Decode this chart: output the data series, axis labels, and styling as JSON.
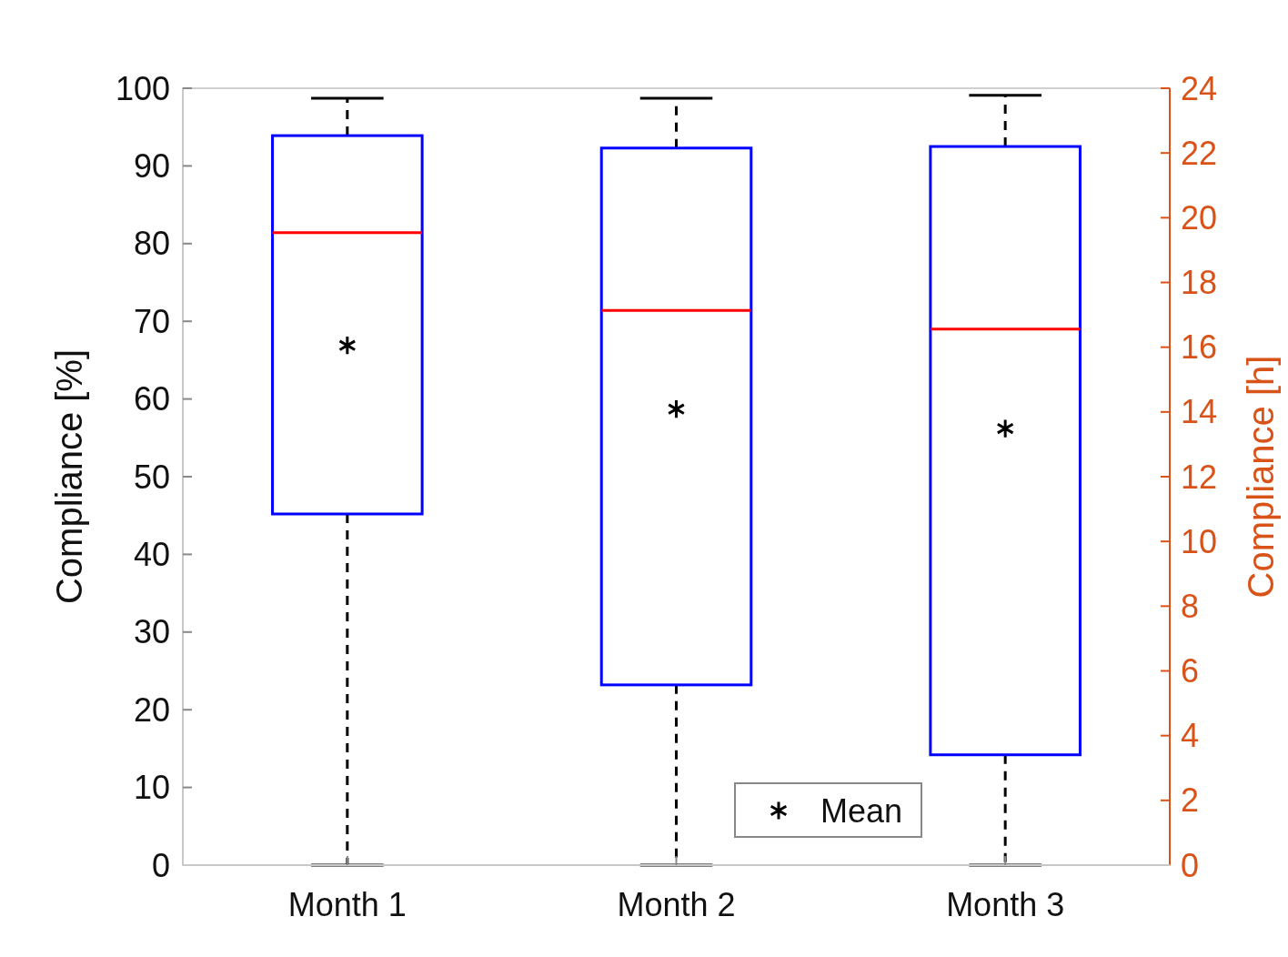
{
  "chart_data": {
    "type": "box",
    "categories": [
      "Month 1",
      "Month 2",
      "Month 3"
    ],
    "ylabel": "Compliance [%]",
    "y2label": "Compliance [h]",
    "ylim": [
      0,
      100
    ],
    "yticks": [
      0,
      10,
      20,
      30,
      40,
      50,
      60,
      70,
      80,
      90,
      100
    ],
    "y2lim": [
      0,
      24
    ],
    "y2ticks": [
      0,
      2,
      4,
      6,
      8,
      10,
      12,
      14,
      16,
      18,
      20,
      22,
      24
    ],
    "grid": false,
    "legend": "bottom",
    "marker": "cross",
    "series": [
      {
        "color": "#0000ff",
        "boxes": [
          {
            "low": 0,
            "q1": 45.2,
            "median": 81.4,
            "q3": 93.9,
            "high": 98.7
          },
          {
            "low": 0,
            "q1": 23.2,
            "median": 71.4,
            "q3": 92.3,
            "high": 98.7
          },
          {
            "low": 0,
            "q1": 14.2,
            "median": 69.0,
            "q3": 92.5,
            "high": 99.1
          }
        ]
      },
      {
        "type": "scatter",
        "name": "Mean",
        "color": "#000000",
        "x": [
          "Month 1",
          "Month 2",
          "Month 3"
        ],
        "values": [
          66.9,
          58.7,
          56.2
        ]
      }
    ]
  }
}
